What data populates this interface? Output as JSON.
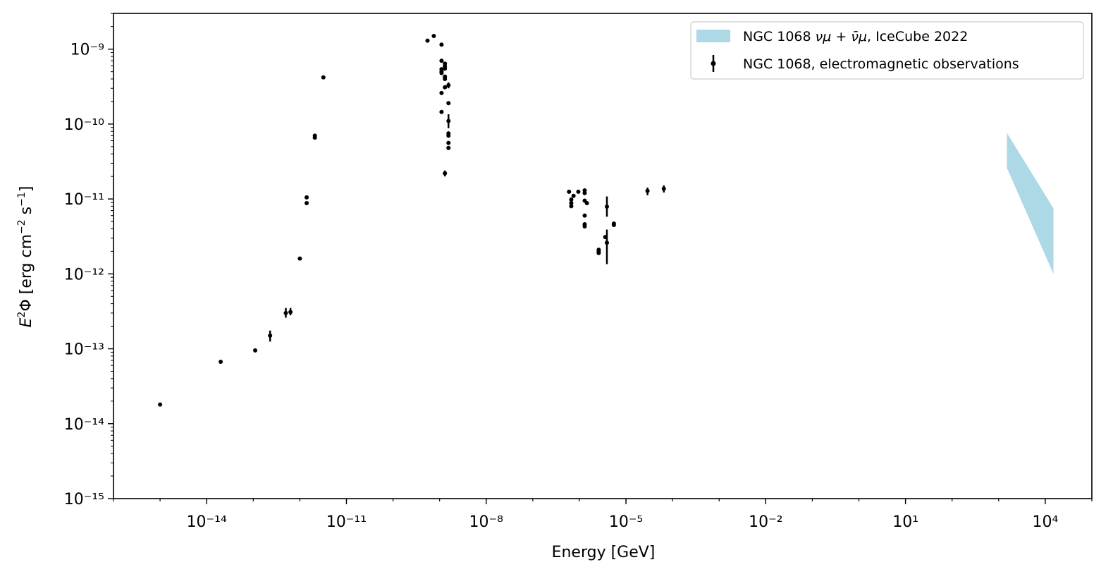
{
  "chart_data": {
    "type": "scatter",
    "xlabel": "Energy [GeV]",
    "ylabel": "E²Φ [erg cm⁻² s⁻¹]",
    "x_scale": "log",
    "y_scale": "log",
    "xlim": [
      1e-16,
      100000.0
    ],
    "ylim": [
      1e-15,
      3e-09
    ],
    "x_ticks": [
      {
        "value": 1e-14,
        "label": "10⁻¹⁴"
      },
      {
        "value": 1e-11,
        "label": "10⁻¹¹"
      },
      {
        "value": 1e-08,
        "label": "10⁻⁸"
      },
      {
        "value": 1e-05,
        "label": "10⁻⁵"
      },
      {
        "value": 0.01,
        "label": "10⁻²"
      },
      {
        "value": 10,
        "label": "10¹"
      },
      {
        "value": 10000,
        "label": "10⁴"
      }
    ],
    "y_ticks": [
      {
        "value": 1e-15,
        "label": "10⁻¹⁵"
      },
      {
        "value": 1e-14,
        "label": "10⁻¹⁴"
      },
      {
        "value": 1e-13,
        "label": "10⁻¹³"
      },
      {
        "value": 1e-12,
        "label": "10⁻¹²"
      },
      {
        "value": 1e-11,
        "label": "10⁻¹¹"
      },
      {
        "value": 1e-10,
        "label": "10⁻¹⁰"
      },
      {
        "value": 1e-09,
        "label": "10⁻⁹"
      }
    ],
    "legend_position": "top-right",
    "series": [
      {
        "name": "NGC 1068 νμ + ν̄μ, IceCube 2022",
        "kind": "band",
        "color": "#add8e6",
        "x": [
          1500,
          15000
        ],
        "y_low": [
          2.6e-11,
          1e-12
        ],
        "y_high": [
          7.6e-11,
          7.5e-12
        ]
      },
      {
        "name": "NGC 1068, electromagnetic observations",
        "kind": "errorbar",
        "color": "#000000",
        "points": [
          {
            "x": 1e-15,
            "y": 1.8e-14
          },
          {
            "x": 2e-14,
            "y": 6.7e-14
          },
          {
            "x": 1.1e-13,
            "y": 9.5e-14
          },
          {
            "x": 2.3e-13,
            "y": 1.5e-13,
            "ylo": 1.25e-13,
            "yhi": 1.75e-13
          },
          {
            "x": 5e-13,
            "y": 3e-13,
            "ylo": 2.6e-13,
            "yhi": 3.5e-13
          },
          {
            "x": 6.3e-13,
            "y": 3.1e-13,
            "ylo": 2.8e-13,
            "yhi": 3.5e-13
          },
          {
            "x": 1e-12,
            "y": 1.6e-12
          },
          {
            "x": 1.4e-12,
            "y": 1.05e-11
          },
          {
            "x": 1.4e-12,
            "y": 8.8e-12
          },
          {
            "x": 2.1e-12,
            "y": 7e-11
          },
          {
            "x": 2.1e-12,
            "y": 6.6e-11
          },
          {
            "x": 3.2e-12,
            "y": 4.2e-10
          },
          {
            "x": 5.5e-10,
            "y": 1.3e-09
          },
          {
            "x": 7.5e-10,
            "y": 1.5e-09
          },
          {
            "x": 1.1e-09,
            "y": 1.15e-09
          },
          {
            "x": 1.1e-09,
            "y": 7e-10
          },
          {
            "x": 1.1e-09,
            "y": 5.4e-10
          },
          {
            "x": 1.1e-09,
            "y": 5e-10
          },
          {
            "x": 1.1e-09,
            "y": 4.8e-10
          },
          {
            "x": 1.1e-09,
            "y": 2.6e-10
          },
          {
            "x": 1.1e-09,
            "y": 1.45e-10
          },
          {
            "x": 1.3e-09,
            "y": 6.4e-10
          },
          {
            "x": 1.3e-09,
            "y": 5.9e-10
          },
          {
            "x": 1.3e-09,
            "y": 5.5e-10
          },
          {
            "x": 1.3e-09,
            "y": 4.3e-10
          },
          {
            "x": 1.3e-09,
            "y": 4e-10
          },
          {
            "x": 1.3e-09,
            "y": 3.1e-10
          },
          {
            "x": 1.3e-09,
            "y": 2.2e-11,
            "ylo": 2e-11,
            "yhi": 2.4e-11
          },
          {
            "x": 1.55e-09,
            "y": 3.3e-10,
            "ylo": 3e-10,
            "yhi": 3.6e-10
          },
          {
            "x": 1.55e-09,
            "y": 1.9e-10
          },
          {
            "x": 1.55e-09,
            "y": 1.1e-10,
            "ylo": 8.8e-11,
            "yhi": 1.35e-10
          },
          {
            "x": 1.55e-09,
            "y": 7.5e-11
          },
          {
            "x": 1.55e-09,
            "y": 7e-11
          },
          {
            "x": 1.55e-09,
            "y": 5.6e-11
          },
          {
            "x": 1.55e-09,
            "y": 4.8e-11
          },
          {
            "x": 6e-07,
            "y": 1.25e-11
          },
          {
            "x": 6.7e-07,
            "y": 9.8e-12
          },
          {
            "x": 6.7e-07,
            "y": 8.8e-12
          },
          {
            "x": 6.7e-07,
            "y": 8e-12
          },
          {
            "x": 7.5e-07,
            "y": 1.1e-11
          },
          {
            "x": 9.5e-07,
            "y": 1.25e-11
          },
          {
            "x": 1.3e-06,
            "y": 1.3e-11
          },
          {
            "x": 1.3e-06,
            "y": 1.2e-11
          },
          {
            "x": 1.3e-06,
            "y": 9.5e-12
          },
          {
            "x": 1.3e-06,
            "y": 6e-12
          },
          {
            "x": 1.3e-06,
            "y": 4.6e-12
          },
          {
            "x": 1.3e-06,
            "y": 4.3e-12
          },
          {
            "x": 1.45e-06,
            "y": 8.8e-12
          },
          {
            "x": 2.6e-06,
            "y": 2.1e-12
          },
          {
            "x": 2.6e-06,
            "y": 2e-12
          },
          {
            "x": 2.6e-06,
            "y": 1.9e-12
          },
          {
            "x": 3.6e-06,
            "y": 3.1e-12
          },
          {
            "x": 3.9e-06,
            "y": 7.9e-12,
            "ylo": 5.8e-12,
            "yhi": 1.08e-11
          },
          {
            "x": 3.9e-06,
            "y": 2.6e-12,
            "ylo": 1.35e-12,
            "yhi": 3.9e-12
          },
          {
            "x": 5.5e-06,
            "y": 4.7e-12
          },
          {
            "x": 5.5e-06,
            "y": 4.5e-12
          },
          {
            "x": 2.9e-05,
            "y": 1.28e-11,
            "ylo": 1.12e-11,
            "yhi": 1.42e-11
          },
          {
            "x": 6.5e-05,
            "y": 1.37e-11,
            "ylo": 1.22e-11,
            "yhi": 1.52e-11
          }
        ]
      }
    ]
  },
  "legend": {
    "band_label_prefix": "NGC 1068 ",
    "band_label_math": "νμ + ν̄μ",
    "band_label_suffix": ", IceCube 2022",
    "points_label": "NGC 1068, electromagnetic observations"
  },
  "axes": {
    "xlabel": "Energy [GeV]",
    "ylabel_prefix": "E",
    "ylabel_rest": "Φ [erg cm",
    "ylabel_units_tail": " s"
  }
}
